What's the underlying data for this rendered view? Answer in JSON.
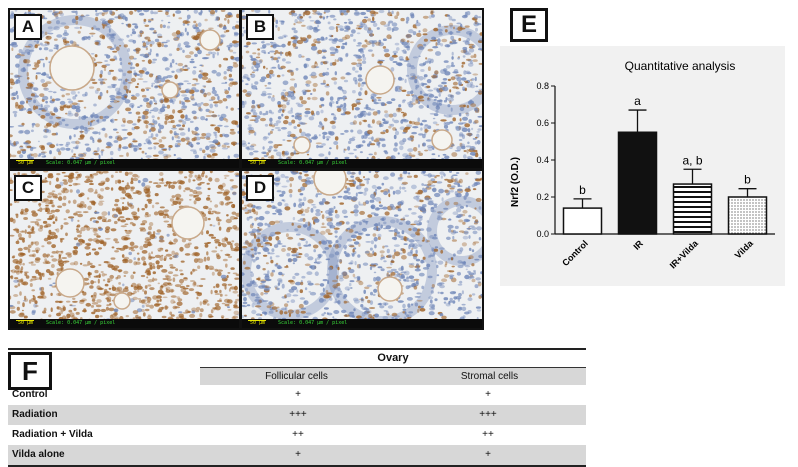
{
  "figure": {
    "panels": [
      {
        "id": "a",
        "label": "A",
        "scale_length": "50 µm",
        "scale_text": "Scale: 0.047 µm / pixel",
        "stain_level": 0.4
      },
      {
        "id": "b",
        "label": "B",
        "scale_length": "50 µm",
        "scale_text": "Scale: 0.047 µm / pixel",
        "stain_level": 0.3
      },
      {
        "id": "c",
        "label": "C",
        "scale_length": "50 µm",
        "scale_text": "Scale: 0.047 µm / pixel",
        "stain_level": 0.95
      },
      {
        "id": "d",
        "label": "D",
        "scale_length": "50 µm",
        "scale_text": "Scale: 0.047 µm / pixel",
        "stain_level": 0.3
      }
    ],
    "colors": {
      "hematoxylin": "#6f86b8",
      "dab": "#a0642a",
      "background": "#eef0f2"
    }
  },
  "panel_e": {
    "label": "E"
  },
  "chart_data": {
    "type": "bar",
    "title": "Quantitative analysis",
    "ylabel": "Nrf2 (O.D.)",
    "xlabel": "",
    "ylim": [
      0,
      0.8
    ],
    "yticks": [
      "0.0",
      "0.2",
      "0.4",
      "0.6",
      "0.8"
    ],
    "categories": [
      "Control",
      "IR",
      "IR+Vilda",
      "Vilda"
    ],
    "values": [
      0.14,
      0.55,
      0.27,
      0.2
    ],
    "errors": [
      0.05,
      0.12,
      0.08,
      0.045
    ],
    "annotations": [
      "b",
      "a",
      "a, b",
      "b"
    ],
    "fills": [
      "white",
      "black",
      "horizontal-stripes",
      "dots"
    ]
  },
  "panel_f": {
    "label": "F",
    "group_header": "Ovary",
    "columns": [
      "Follicular cells",
      "Stromal cells"
    ],
    "rows": [
      {
        "label": "Control",
        "follicular": "+",
        "stromal": "+"
      },
      {
        "label": "Radiation",
        "follicular": "+++",
        "stromal": "+++"
      },
      {
        "label": "Radiation + Vilda",
        "follicular": "++",
        "stromal": "++"
      },
      {
        "label": "Vilda alone",
        "follicular": "+",
        "stromal": "+"
      }
    ]
  }
}
